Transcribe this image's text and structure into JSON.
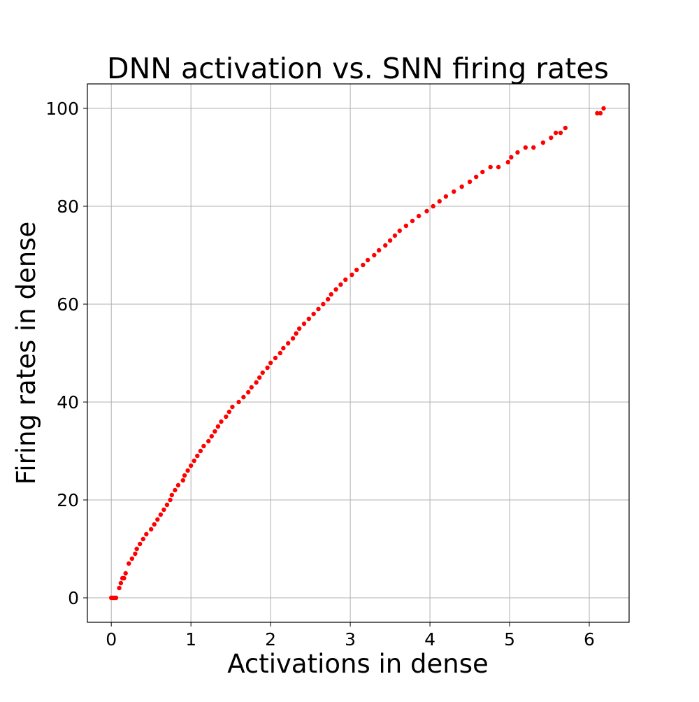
{
  "chart_data": {
    "type": "scatter",
    "title": "DNN activation vs. SNN firing rates",
    "xlabel": "Activations in dense",
    "ylabel": "Firing rates in dense",
    "xlim": [
      -0.3,
      6.5
    ],
    "ylim": [
      -5,
      105
    ],
    "xticks": [
      0,
      1,
      2,
      3,
      4,
      5,
      6
    ],
    "yticks": [
      0,
      20,
      40,
      60,
      80,
      100
    ],
    "xtick_labels": [
      "0",
      "1",
      "2",
      "3",
      "4",
      "5",
      "6"
    ],
    "ytick_labels": [
      "0",
      "20",
      "40",
      "60",
      "80",
      "100"
    ],
    "grid": true,
    "marker_color": "#ff0000",
    "series": [
      {
        "name": "dense",
        "points": [
          [
            0.0,
            0
          ],
          [
            0.02,
            0
          ],
          [
            0.04,
            0
          ],
          [
            0.06,
            0
          ],
          [
            0.1,
            2
          ],
          [
            0.12,
            3
          ],
          [
            0.14,
            4
          ],
          [
            0.16,
            4
          ],
          [
            0.18,
            5
          ],
          [
            0.22,
            7
          ],
          [
            0.26,
            8
          ],
          [
            0.3,
            9
          ],
          [
            0.32,
            10
          ],
          [
            0.36,
            11
          ],
          [
            0.4,
            12
          ],
          [
            0.44,
            13
          ],
          [
            0.5,
            14
          ],
          [
            0.54,
            15
          ],
          [
            0.58,
            16
          ],
          [
            0.62,
            17
          ],
          [
            0.66,
            18
          ],
          [
            0.7,
            19
          ],
          [
            0.74,
            20
          ],
          [
            0.76,
            21
          ],
          [
            0.8,
            22
          ],
          [
            0.84,
            23
          ],
          [
            0.9,
            24
          ],
          [
            0.92,
            25
          ],
          [
            0.96,
            26
          ],
          [
            1.0,
            27
          ],
          [
            1.04,
            28
          ],
          [
            1.08,
            29
          ],
          [
            1.12,
            30
          ],
          [
            1.16,
            31
          ],
          [
            1.22,
            32
          ],
          [
            1.26,
            33
          ],
          [
            1.3,
            34
          ],
          [
            1.34,
            35
          ],
          [
            1.38,
            36
          ],
          [
            1.44,
            37
          ],
          [
            1.48,
            38
          ],
          [
            1.52,
            39
          ],
          [
            1.6,
            40
          ],
          [
            1.66,
            41
          ],
          [
            1.72,
            42
          ],
          [
            1.76,
            43
          ],
          [
            1.82,
            44
          ],
          [
            1.86,
            45
          ],
          [
            1.9,
            46
          ],
          [
            1.96,
            47
          ],
          [
            2.0,
            48
          ],
          [
            2.06,
            49
          ],
          [
            2.12,
            50
          ],
          [
            2.16,
            51
          ],
          [
            2.22,
            52
          ],
          [
            2.28,
            53
          ],
          [
            2.32,
            54
          ],
          [
            2.36,
            55
          ],
          [
            2.42,
            56
          ],
          [
            2.48,
            57
          ],
          [
            2.54,
            58
          ],
          [
            2.6,
            59
          ],
          [
            2.66,
            60
          ],
          [
            2.72,
            61
          ],
          [
            2.76,
            62
          ],
          [
            2.82,
            63
          ],
          [
            2.88,
            64
          ],
          [
            2.94,
            65
          ],
          [
            3.02,
            66
          ],
          [
            3.08,
            67
          ],
          [
            3.16,
            68
          ],
          [
            3.22,
            69
          ],
          [
            3.3,
            70
          ],
          [
            3.36,
            71
          ],
          [
            3.44,
            72
          ],
          [
            3.5,
            73
          ],
          [
            3.56,
            74
          ],
          [
            3.62,
            75
          ],
          [
            3.7,
            76
          ],
          [
            3.78,
            77
          ],
          [
            3.86,
            78
          ],
          [
            3.96,
            79
          ],
          [
            4.04,
            80
          ],
          [
            4.12,
            81
          ],
          [
            4.2,
            82
          ],
          [
            4.3,
            83
          ],
          [
            4.4,
            84
          ],
          [
            4.5,
            85
          ],
          [
            4.58,
            86
          ],
          [
            4.66,
            87
          ],
          [
            4.76,
            88
          ],
          [
            4.86,
            88
          ],
          [
            4.98,
            89
          ],
          [
            5.02,
            90
          ],
          [
            5.1,
            91
          ],
          [
            5.2,
            92
          ],
          [
            5.3,
            92
          ],
          [
            5.42,
            93
          ],
          [
            5.52,
            94
          ],
          [
            5.58,
            95
          ],
          [
            5.64,
            95
          ],
          [
            5.7,
            96
          ],
          [
            6.1,
            99
          ],
          [
            6.14,
            99
          ],
          [
            6.18,
            100
          ]
        ]
      }
    ]
  }
}
